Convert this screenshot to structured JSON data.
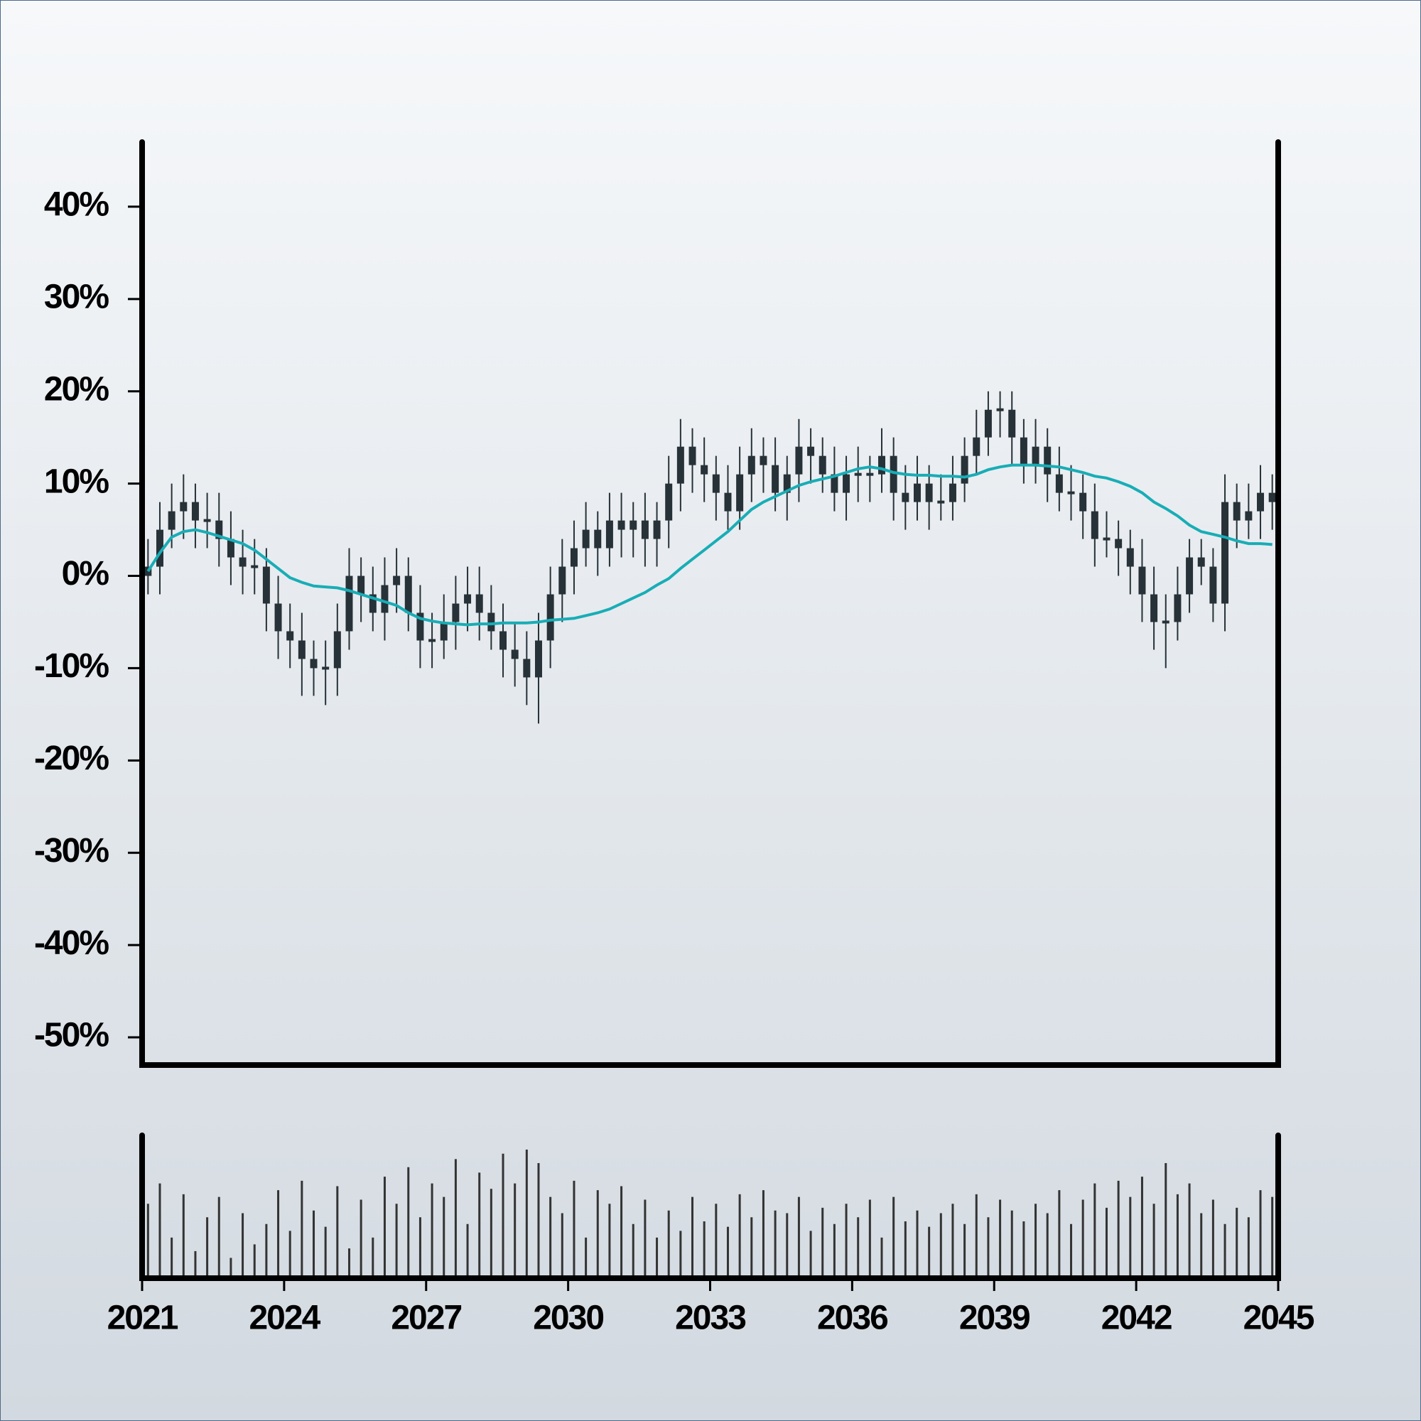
{
  "chart_data": {
    "type": "candlestick",
    "xlim": [
      2021,
      2045
    ],
    "xticks": [
      2021,
      2024,
      2027,
      2030,
      2033,
      2036,
      2039,
      2042,
      2045
    ],
    "ylim": [
      -53,
      47
    ],
    "yticks": [
      {
        "value": -50,
        "label": "-50%"
      },
      {
        "value": -40,
        "label": "-40%"
      },
      {
        "value": -30,
        "label": "-30%"
      },
      {
        "value": -20,
        "label": "-20%"
      },
      {
        "value": -10,
        "label": "-10%"
      },
      {
        "value": 0,
        "label": "0%"
      },
      {
        "value": 10,
        "label": "10%"
      },
      {
        "value": 20,
        "label": "20%"
      },
      {
        "value": 30,
        "label": "30%"
      },
      {
        "value": 40,
        "label": "40%"
      }
    ],
    "color": "#263238",
    "x": [
      2021,
      2021.25,
      2021.5,
      2021.75,
      2022,
      2022.25,
      2022.5,
      2022.75,
      2023,
      2023.25,
      2023.5,
      2023.75,
      2024,
      2024.25,
      2024.5,
      2024.75,
      2025,
      2025.25,
      2025.5,
      2025.75,
      2026,
      2026.25,
      2026.5,
      2026.75,
      2027,
      2027.25,
      2027.5,
      2027.75,
      2028,
      2028.25,
      2028.5,
      2028.75,
      2029,
      2029.25,
      2029.5,
      2029.75,
      2030,
      2030.25,
      2030.5,
      2030.75,
      2031,
      2031.25,
      2031.5,
      2031.75,
      2032,
      2032.25,
      2032.5,
      2032.75,
      2033,
      2033.25,
      2033.5,
      2033.75,
      2034,
      2034.25,
      2034.5,
      2034.75,
      2035,
      2035.25,
      2035.5,
      2035.75,
      2036,
      2036.25,
      2036.5,
      2036.75,
      2037,
      2037.25,
      2037.5,
      2037.75,
      2038,
      2038.25,
      2038.5,
      2038.75,
      2039,
      2039.25,
      2039.5,
      2039.75,
      2040,
      2040.25,
      2040.5,
      2040.75,
      2041,
      2041.25,
      2041.5,
      2041.75,
      2042,
      2042.25,
      2042.5,
      2042.75,
      2043,
      2043.25,
      2043.5,
      2043.75,
      2044,
      2044.25,
      2044.5,
      2044.75
    ],
    "open": [
      0,
      1,
      5,
      7,
      8,
      6,
      6,
      4,
      2,
      1,
      1,
      -3,
      -6,
      -7,
      -9,
      -10,
      -10,
      -6,
      0,
      -2,
      -4,
      -1,
      0,
      -4,
      -7,
      -7,
      -5,
      -3,
      -2,
      -4,
      -6,
      -8,
      -9,
      -11,
      -7,
      -2,
      1,
      3,
      5,
      3,
      6,
      5,
      6,
      4,
      6,
      10,
      14,
      12,
      11,
      9,
      7,
      11,
      13,
      12,
      9,
      11,
      14,
      13,
      11,
      9,
      11,
      11,
      11,
      13,
      9,
      8,
      10,
      8,
      8,
      10,
      13,
      15,
      18,
      18,
      15,
      12,
      14,
      11,
      9,
      9,
      7,
      4,
      4,
      3,
      1,
      -2,
      -5,
      -5,
      -2,
      2,
      1,
      -3,
      8,
      6,
      7,
      9
    ],
    "high": [
      4,
      8,
      10,
      11,
      10,
      9,
      9,
      7,
      5,
      4,
      3,
      0,
      -3,
      -4,
      -7,
      -7,
      -3,
      3,
      2,
      1,
      2,
      3,
      2,
      -1,
      -4,
      -2,
      0,
      1,
      1,
      -1,
      -3,
      -5,
      -6,
      -4,
      1,
      4,
      6,
      8,
      7,
      9,
      9,
      8,
      9,
      8,
      13,
      17,
      16,
      15,
      13,
      12,
      14,
      16,
      15,
      15,
      13,
      17,
      16,
      15,
      14,
      13,
      14,
      13,
      16,
      15,
      12,
      13,
      12,
      11,
      13,
      15,
      18,
      20,
      20,
      20,
      17,
      17,
      16,
      14,
      12,
      11,
      10,
      7,
      6,
      5,
      4,
      1,
      -2,
      1,
      4,
      4,
      3,
      11,
      10,
      10,
      12,
      11
    ],
    "low": [
      -2,
      -2,
      3,
      4,
      3,
      3,
      1,
      -1,
      -2,
      -2,
      -6,
      -9,
      -10,
      -13,
      -13,
      -14,
      -13,
      -8,
      -5,
      -6,
      -7,
      -4,
      -6,
      -10,
      -10,
      -9,
      -8,
      -6,
      -7,
      -8,
      -11,
      -12,
      -14,
      -16,
      -10,
      -5,
      -2,
      1,
      0,
      1,
      2,
      2,
      1,
      1,
      3,
      7,
      9,
      8,
      6,
      5,
      5,
      8,
      9,
      7,
      6,
      8,
      10,
      9,
      7,
      6,
      8,
      8,
      9,
      6,
      5,
      6,
      5,
      6,
      6,
      8,
      11,
      13,
      15,
      12,
      10,
      10,
      8,
      7,
      6,
      4,
      1,
      2,
      0,
      -2,
      -5,
      -8,
      -10,
      -7,
      -4,
      -1,
      -5,
      -6,
      3,
      4,
      4,
      5
    ],
    "close": [
      1,
      5,
      7,
      8,
      6,
      6,
      4,
      2,
      1,
      1,
      -3,
      -6,
      -7,
      -9,
      -10,
      -10,
      -6,
      0,
      -2,
      -4,
      -1,
      0,
      -4,
      -7,
      -7,
      -5,
      -3,
      -2,
      -4,
      -6,
      -8,
      -9,
      -11,
      -7,
      -2,
      1,
      3,
      5,
      3,
      6,
      5,
      6,
      4,
      6,
      10,
      14,
      12,
      11,
      9,
      7,
      11,
      13,
      12,
      9,
      11,
      14,
      13,
      11,
      9,
      11,
      11,
      11,
      13,
      9,
      8,
      10,
      8,
      8,
      10,
      13,
      15,
      18,
      18,
      15,
      12,
      14,
      11,
      9,
      9,
      7,
      4,
      4,
      3,
      1,
      -2,
      -5,
      -5,
      -2,
      2,
      1,
      -3,
      8,
      6,
      7,
      9,
      8
    ],
    "ma_line": {
      "color": "#18adb6",
      "values": [
        0.5,
        2.5,
        4.2,
        4.8,
        5,
        4.7,
        4.3,
        3.9,
        3.5,
        2.8,
        1.8,
        0.8,
        -0.2,
        -0.7,
        -1.1,
        -1.2,
        -1.3,
        -1.6,
        -2.0,
        -2.4,
        -2.8,
        -3.2,
        -4.0,
        -4.6,
        -4.9,
        -5.1,
        -5.2,
        -5.3,
        -5.2,
        -5.2,
        -5.1,
        -5.1,
        -5.1,
        -5.0,
        -4.8,
        -4.7,
        -4.6,
        -4.3,
        -4.0,
        -3.6,
        -3.0,
        -2.4,
        -1.8,
        -1.0,
        -0.3,
        0.8,
        1.8,
        2.8,
        3.8,
        4.8,
        6.0,
        7.2,
        8.0,
        8.6,
        9.2,
        9.8,
        10.2,
        10.5,
        10.8,
        11.2,
        11.6,
        11.8,
        11.6,
        11.2,
        11.0,
        10.9,
        10.9,
        10.8,
        10.8,
        10.7,
        11.0,
        11.5,
        11.8,
        12.0,
        12.0,
        12.0,
        11.9,
        11.8,
        11.5,
        11.2,
        10.8,
        10.6,
        10.2,
        9.7,
        9.0,
        8.0,
        7.3,
        6.5,
        5.5,
        4.8,
        4.5,
        4.2,
        3.8,
        3.5,
        3.5,
        3.4
      ]
    },
    "volume": {
      "color": "#333333",
      "values": [
        55,
        70,
        30,
        62,
        20,
        45,
        60,
        15,
        48,
        25,
        40,
        65,
        35,
        72,
        50,
        38,
        68,
        22,
        58,
        30,
        75,
        55,
        82,
        45,
        70,
        60,
        88,
        40,
        78,
        66,
        92,
        70,
        95,
        85,
        60,
        48,
        72,
        30,
        65,
        55,
        68,
        40,
        58,
        30,
        50,
        35,
        60,
        42,
        55,
        38,
        62,
        45,
        65,
        50,
        48,
        60,
        35,
        52,
        40,
        55,
        45,
        58,
        30,
        60,
        42,
        50,
        38,
        48,
        55,
        40,
        62,
        45,
        58,
        50,
        42,
        55,
        48,
        65,
        40,
        58,
        70,
        52,
        72,
        60,
        75,
        55,
        85,
        62,
        70,
        48,
        58,
        40,
        52,
        45,
        65,
        60
      ]
    },
    "axes_color": "#000000"
  }
}
